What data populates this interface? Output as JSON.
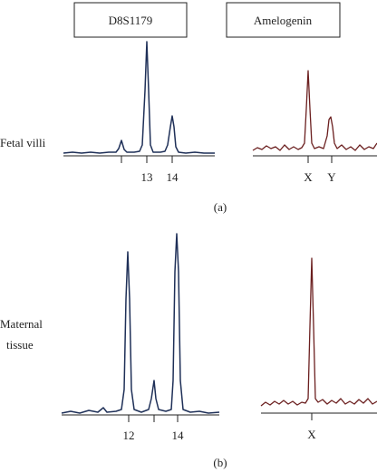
{
  "panels": {
    "a": {
      "caption": "(a)",
      "row_label": "Fetal villi"
    },
    "b": {
      "caption": "(b)",
      "row_label_1": "Maternal",
      "row_label_2": "tissue"
    }
  },
  "headers": {
    "left": "D8S1179",
    "right": "Amelogenin"
  },
  "colors": {
    "left_trace": "#1f3058",
    "right_trace": "#6b1f1f",
    "axis": "#222222"
  },
  "chart_data": [
    {
      "type": "line",
      "title": "D8S1179",
      "panel": "(a)",
      "row": "Fetal villi",
      "x_ticks": [
        "12",
        "13",
        "14"
      ],
      "x_tick_labels": [
        "",
        "13",
        "14"
      ],
      "peaks": [
        {
          "allele": "12",
          "relative_height": 0.12
        },
        {
          "allele": "13",
          "relative_height": 1.0
        },
        {
          "allele": "14",
          "relative_height": 0.3
        }
      ]
    },
    {
      "type": "line",
      "title": "Amelogenin",
      "panel": "(a)",
      "row": "Fetal villi",
      "x_tick_labels": [
        "X",
        "Y"
      ],
      "peaks": [
        {
          "allele": "X",
          "relative_height": 1.0
        },
        {
          "allele": "Y",
          "relative_height": 0.46
        }
      ]
    },
    {
      "type": "line",
      "title": "D8S1179",
      "panel": "(b)",
      "row": "Maternal tissue",
      "x_ticks": [
        "12",
        "13",
        "14"
      ],
      "x_tick_labels": [
        "12",
        "",
        "14"
      ],
      "peaks": [
        {
          "allele": "12",
          "relative_height": 0.95
        },
        {
          "allele": "13",
          "relative_height": 0.17
        },
        {
          "allele": "14",
          "relative_height": 1.0
        }
      ]
    },
    {
      "type": "line",
      "title": "Amelogenin",
      "panel": "(b)",
      "row": "Maternal tissue",
      "x_tick_labels": [
        "X"
      ],
      "peaks": [
        {
          "allele": "X",
          "relative_height": 1.0
        }
      ]
    }
  ]
}
